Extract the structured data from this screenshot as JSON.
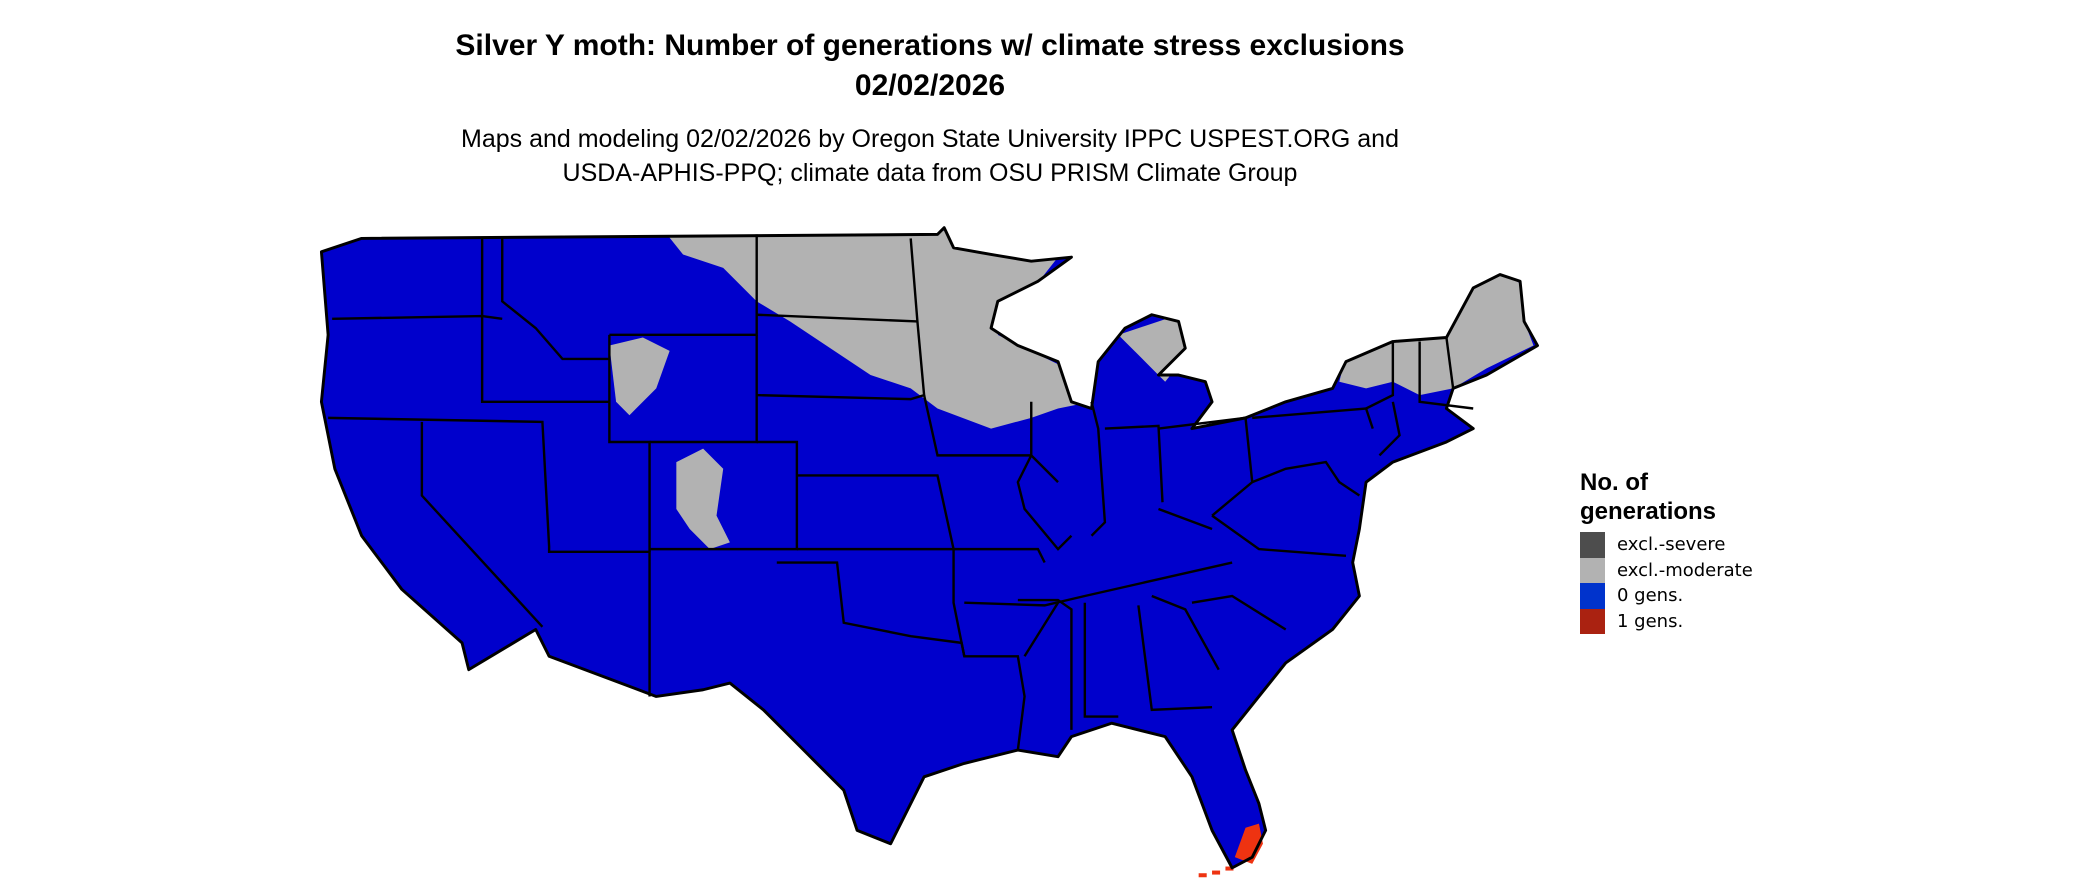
{
  "title": {
    "line1": "Silver Y moth: Number of generations w/ climate stress exclusions",
    "line2": "02/02/2026"
  },
  "subtitle": {
    "line1": "Maps and modeling 02/02/2026 by Oregon State University IPPC USPEST.ORG and",
    "line2": "USDA-APHIS-PPQ; climate data from OSU PRISM Climate Group"
  },
  "map": {
    "region": "Contiguous United States",
    "dominant_category": "0 gens.",
    "fill_colors": {
      "zero_gens": "#0000cc",
      "excl_moderate": "#b2b2b2",
      "one_gen": "#ee3311",
      "border": "#000000"
    }
  },
  "legend": {
    "title_line1": "No. of",
    "title_line2": "generations",
    "items": [
      {
        "label": "excl.-severe",
        "color": "#4d4d4d"
      },
      {
        "label": "excl.-moderate",
        "color": "#b2b2b2"
      },
      {
        "label": "0 gens.",
        "color": "#0033cc"
      },
      {
        "label": "1 gens.",
        "color": "#aa2211"
      }
    ]
  }
}
